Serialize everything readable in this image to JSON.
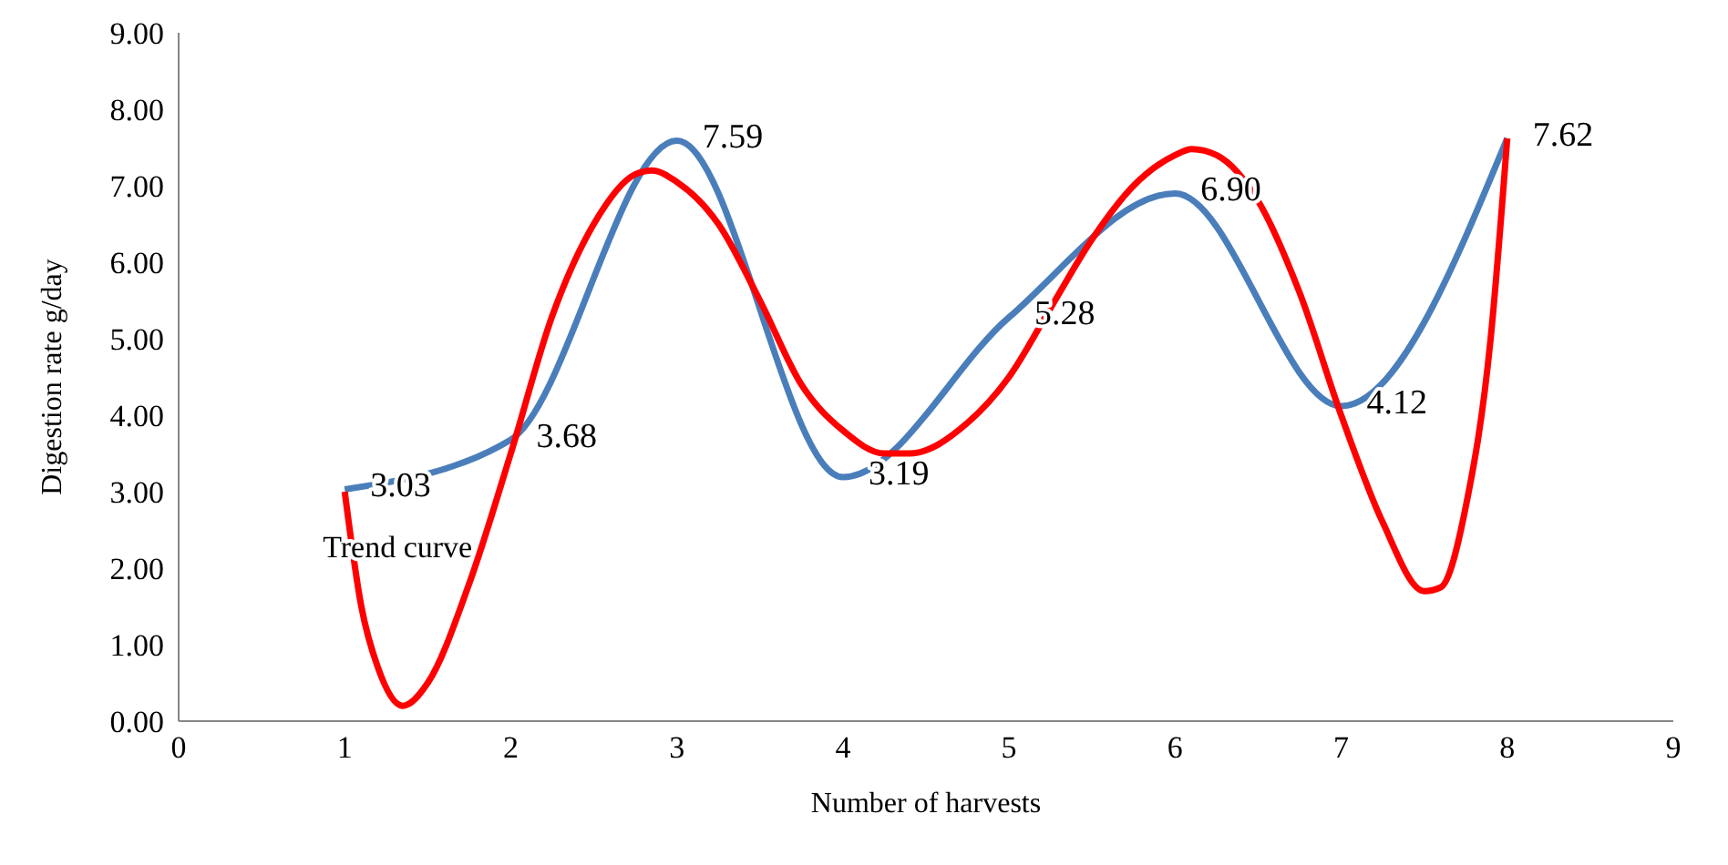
{
  "chart_data": {
    "type": "line",
    "xlabel": "Number of harvests",
    "ylabel": "Digestion rate g/day",
    "xlim": [
      0,
      9
    ],
    "xticks": [
      0,
      1,
      2,
      3,
      4,
      5,
      6,
      7,
      8,
      9
    ],
    "ylim": [
      0,
      9
    ],
    "yticks": [
      {
        "value": 0,
        "label": "0.00"
      },
      {
        "value": 1,
        "label": "1.00"
      },
      {
        "value": 2,
        "label": "2.00"
      },
      {
        "value": 3,
        "label": "3.00"
      },
      {
        "value": 4,
        "label": "4.00"
      },
      {
        "value": 5,
        "label": "5.00"
      },
      {
        "value": 6,
        "label": "6.00"
      },
      {
        "value": 7,
        "label": "7.00"
      },
      {
        "value": 8,
        "label": "8.00"
      },
      {
        "value": 9,
        "label": "9.00"
      }
    ],
    "grid": false,
    "marker": "none",
    "line_style": "solid",
    "series": [
      {
        "color": "#4a7ebb",
        "data_labels": true,
        "x": [
          1,
          2,
          3,
          4,
          5,
          6,
          7,
          8
        ],
        "values": [
          3.03,
          3.68,
          7.59,
          3.19,
          5.28,
          6.9,
          4.12,
          7.62
        ],
        "value_labels": [
          "3.03",
          "3.68",
          "7.59",
          "3.19",
          "5.28",
          "6.90",
          "4.12",
          "7.62"
        ]
      },
      {
        "name": "Trend curve",
        "color": "#ff0000",
        "x": [
          1,
          1.1,
          1.2,
          1.35,
          1.5,
          1.75,
          2,
          2.25,
          2.5,
          2.75,
          2.85,
          3,
          3.25,
          3.5,
          3.75,
          4,
          4.25,
          4.4,
          4.75,
          5,
          5.25,
          5.5,
          5.75,
          6,
          6.1,
          6.25,
          6.5,
          6.75,
          7,
          7.25,
          7.5,
          7.6,
          7.75,
          7.9,
          8
        ],
        "values": [
          3.0,
          1.5,
          0.7,
          0.2,
          0.5,
          1.8,
          3.5,
          5.3,
          6.5,
          7.15,
          7.2,
          7.05,
          6.5,
          5.5,
          4.4,
          3.8,
          3.5,
          3.5,
          3.9,
          4.5,
          5.4,
          6.3,
          7.0,
          7.4,
          7.48,
          7.4,
          6.8,
          5.6,
          4.0,
          2.6,
          1.7,
          1.75,
          2.8,
          5.0,
          7.62
        ]
      }
    ]
  }
}
